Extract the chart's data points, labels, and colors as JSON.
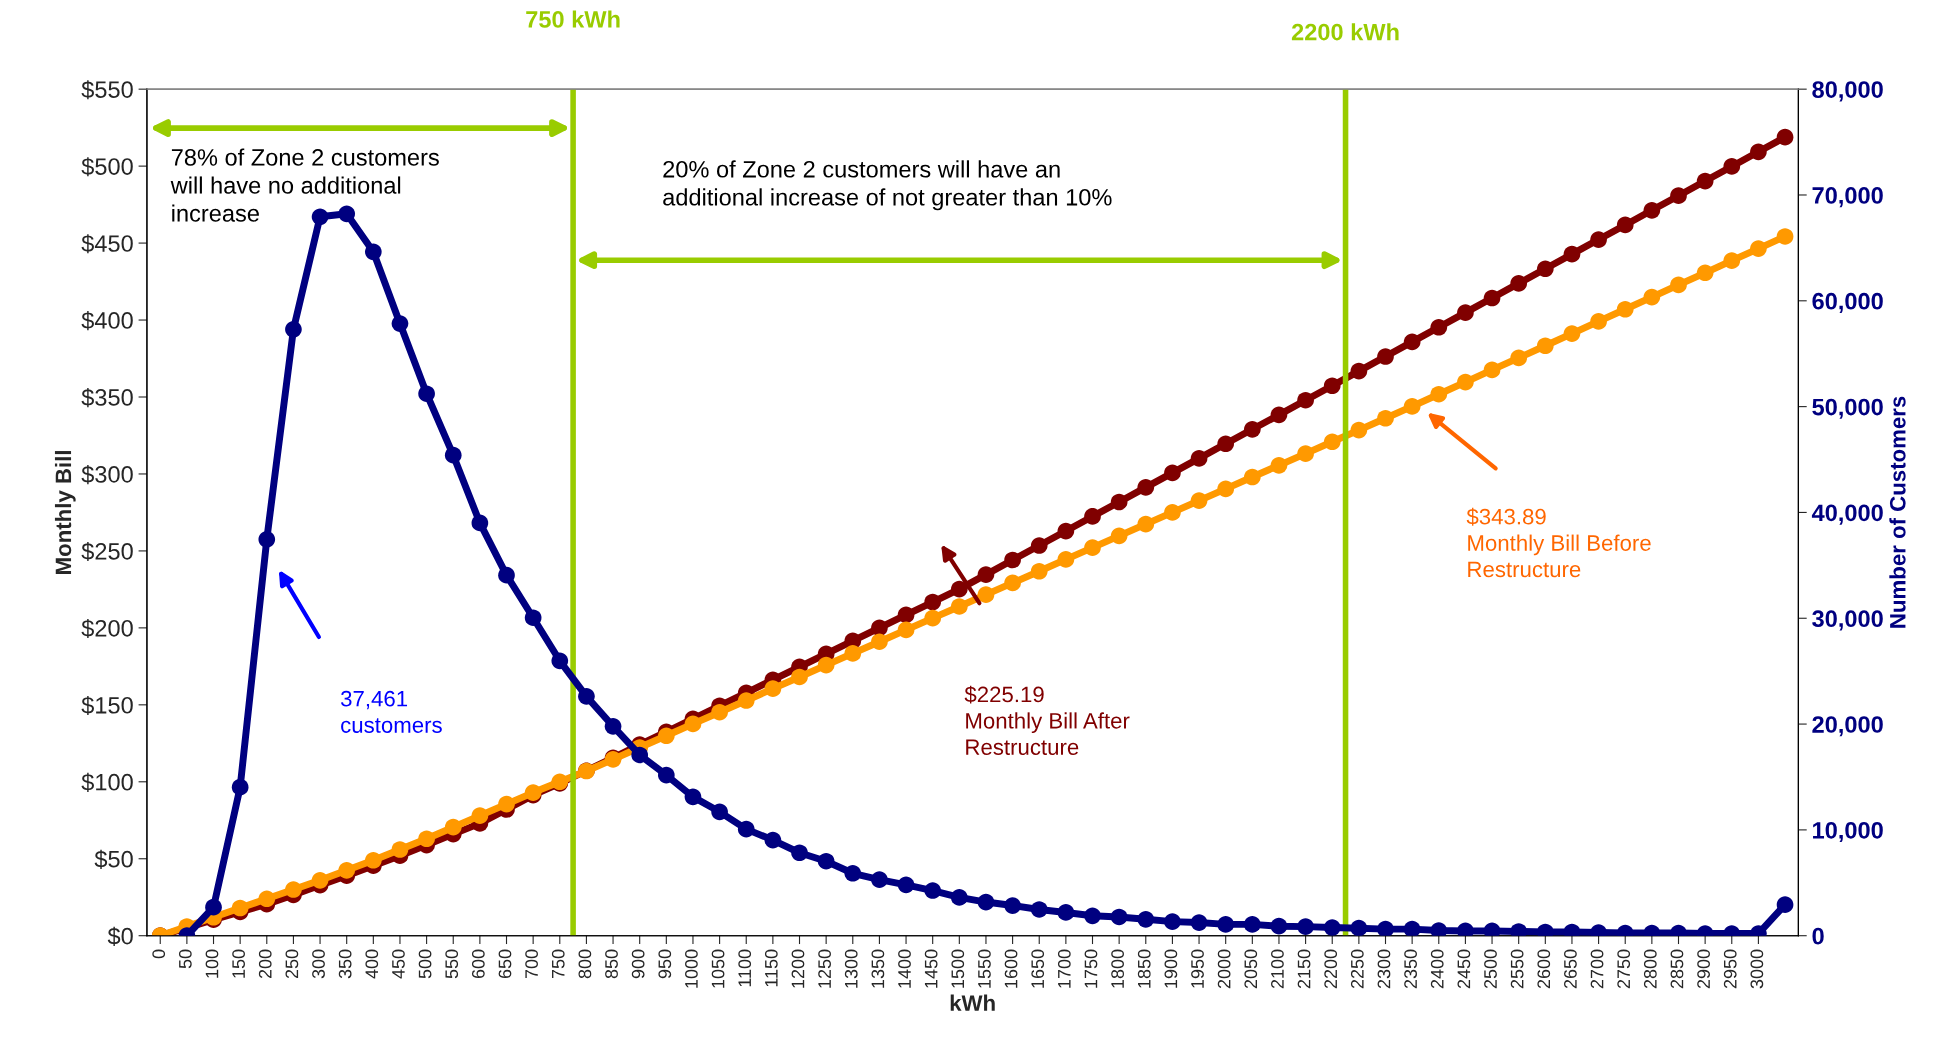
{
  "chart_data": {
    "type": "line",
    "x": [
      0,
      50,
      100,
      150,
      200,
      250,
      300,
      350,
      400,
      450,
      500,
      550,
      600,
      650,
      700,
      750,
      800,
      850,
      900,
      950,
      1000,
      1050,
      1100,
      1150,
      1200,
      1250,
      1300,
      1350,
      1400,
      1450,
      1500,
      1550,
      1600,
      1650,
      1700,
      1750,
      1800,
      1850,
      1900,
      1950,
      2000,
      2050,
      2100,
      2150,
      2200,
      2250,
      2300,
      2350,
      2400,
      2450,
      2500,
      2550,
      2600,
      2650,
      2700,
      2750,
      2800,
      2850,
      2900,
      2950,
      3000,
      3050
    ],
    "series": [
      {
        "color": "#ff9900",
        "values": [
          0,
          6,
          12,
          18,
          24,
          30,
          36,
          42.5,
          49,
          56,
          63,
          70.5,
          78,
          85.5,
          93,
          100,
          107,
          114.6,
          122.3,
          129.9,
          137.6,
          145.2,
          152.8,
          160.5,
          168.1,
          175.8,
          183.4,
          191,
          198.7,
          206.3,
          213.9,
          221.6,
          229.2,
          236.8,
          244.5,
          252.1,
          259.8,
          267.4,
          275,
          282.7,
          290.3,
          298,
          305.6,
          313.2,
          320.9,
          328.5,
          336.2,
          343.89,
          351.8,
          359.7,
          367.6,
          375.4,
          383.3,
          391.2,
          399.1,
          407,
          414.9,
          422.8,
          430.7,
          438.6,
          446.4,
          454.3
        ]
      },
      {
        "color": "#800000",
        "values": [
          0,
          5,
          10.4,
          15.5,
          20.5,
          26.5,
          32.8,
          39,
          45.5,
          52,
          58.9,
          66,
          73,
          82,
          91.3,
          99,
          107.2,
          115.6,
          124.1,
          132.5,
          140.9,
          149.4,
          157.8,
          166.2,
          174.7,
          183.1,
          191.5,
          200,
          208.4,
          216.8,
          225.19,
          234.6,
          244.1,
          253.5,
          262.9,
          272.4,
          281.8,
          291.3,
          300.7,
          310.1,
          319.6,
          329,
          338.4,
          347.9,
          357.3,
          366.8,
          376.3,
          385.8,
          395.3,
          404.8,
          414.3,
          423.8,
          433.3,
          442.8,
          452.3,
          461.8,
          471.3,
          480.8,
          490.3,
          499.8,
          509.3,
          518.8
        ]
      },
      {
        "color": "#000080",
        "axis": "y2",
        "values": [
          null,
          0,
          2700,
          14040,
          37461,
          57300,
          67940,
          68220,
          64630,
          57850,
          51220,
          45410,
          39010,
          34070,
          30050,
          25980,
          22620,
          19790,
          17080,
          15180,
          13120,
          11710,
          10070,
          9040,
          7840,
          7040,
          5900,
          5300,
          4810,
          4270,
          3620,
          3180,
          2850,
          2480,
          2200,
          1880,
          1770,
          1550,
          1330,
          1240,
          1070,
          1070,
          900,
          860,
          770,
          710,
          620,
          620,
          490,
          450,
          450,
          400,
          350,
          350,
          300,
          250,
          250,
          250,
          200,
          200,
          200,
          2930
        ]
      }
    ],
    "marker": "circle",
    "xlabel": "kWh",
    "ylabel": "Monthly Bill",
    "y2label": "Number of Customers",
    "xlim": [
      -25,
      3075
    ],
    "xticks": [
      0,
      50,
      100,
      150,
      200,
      250,
      300,
      350,
      400,
      450,
      500,
      550,
      600,
      650,
      700,
      750,
      800,
      850,
      900,
      950,
      1000,
      1050,
      1100,
      1150,
      1200,
      1250,
      1300,
      1350,
      1400,
      1450,
      1500,
      1550,
      1600,
      1650,
      1700,
      1750,
      1800,
      1850,
      1900,
      1950,
      2000,
      2050,
      2100,
      2150,
      2200,
      2250,
      2300,
      2350,
      2400,
      2450,
      2500,
      2550,
      2600,
      2650,
      2700,
      2750,
      2800,
      2850,
      2900,
      2950,
      3000
    ],
    "ylim": [
      0,
      550
    ],
    "yticks": [
      {
        "value": 0,
        "label": "$0"
      },
      {
        "value": 50,
        "label": "$50"
      },
      {
        "value": 100,
        "label": "$100"
      },
      {
        "value": 150,
        "label": "$150"
      },
      {
        "value": 200,
        "label": "$200"
      },
      {
        "value": 250,
        "label": "$250"
      },
      {
        "value": 300,
        "label": "$300"
      },
      {
        "value": 350,
        "label": "$350"
      },
      {
        "value": 400,
        "label": "$400"
      },
      {
        "value": 450,
        "label": "$450"
      },
      {
        "value": 500,
        "label": "$500"
      },
      {
        "value": 550,
        "label": "$550"
      }
    ],
    "y2lim": [
      0,
      80000
    ],
    "y2ticks": [
      0,
      {
        "value": 10000,
        "label": "10,000"
      },
      {
        "value": 20000,
        "label": "20,000"
      },
      {
        "value": 30000,
        "label": "30,000"
      },
      {
        "value": 40000,
        "label": "40,000"
      },
      {
        "value": 50000,
        "label": "50,000"
      },
      {
        "value": 60000,
        "label": "60,000"
      },
      {
        "value": 70000,
        "label": "70,000"
      },
      {
        "value": 80000,
        "label": "80,000"
      }
    ],
    "ref_lines": [
      {
        "axis": "x",
        "value": 775,
        "label": "750 kWh",
        "color": "#99cc00"
      },
      {
        "axis": "x",
        "value": 2225,
        "label": "2200 kWh",
        "color": "#99cc00"
      }
    ],
    "annotations": [
      "78% of Zone 2 customers\nwill have no additional\nincrease",
      "20% of Zone 2 customers will have an\nadditional increase of not greater than 10%",
      "37,461\ncustomers",
      "$225.19\nMonthly Bill After\nRestructure",
      "$343.89\nMonthly Bill Before\nRestructure"
    ],
    "grid": false,
    "legend": false
  }
}
